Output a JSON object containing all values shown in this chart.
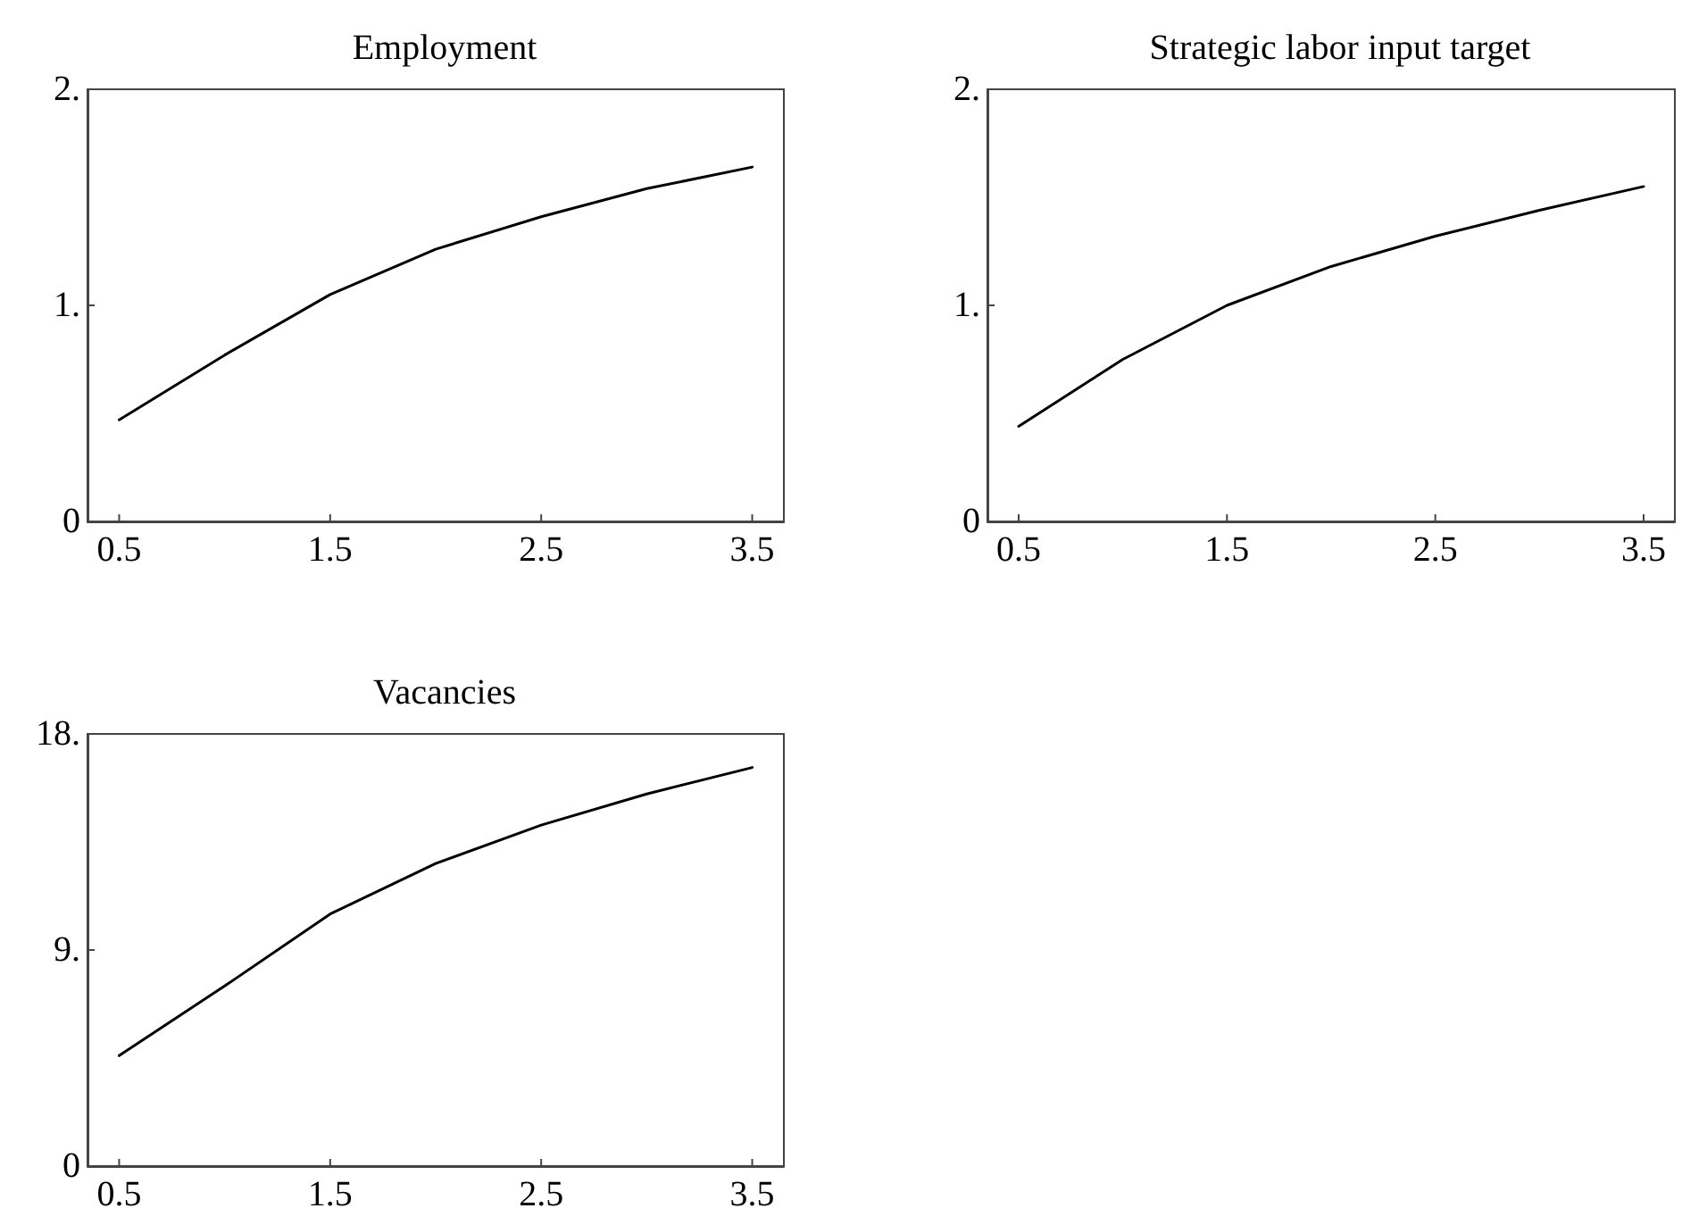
{
  "chart_data": [
    {
      "type": "line",
      "title": "Employment",
      "x": [
        0.5,
        1.0,
        1.5,
        2.0,
        2.5,
        3.0,
        3.5
      ],
      "series": [
        {
          "color": "#000000",
          "values": [
            0.47,
            0.77,
            1.05,
            1.26,
            1.41,
            1.54,
            1.64
          ]
        }
      ],
      "xlim": [
        0.35,
        3.65
      ],
      "xticks": [
        0.5,
        1.5,
        2.5,
        3.5
      ],
      "ylim": [
        0,
        2
      ],
      "yticks": [
        {
          "value": 0,
          "label": "0"
        },
        {
          "value": 1,
          "label": "1."
        },
        {
          "value": 2,
          "label": "2."
        }
      ],
      "grid": false,
      "marker": "none",
      "line_style": "solid"
    },
    {
      "type": "line",
      "title": "Strategic labor input target",
      "x": [
        0.5,
        1.0,
        1.5,
        2.0,
        2.5,
        3.0,
        3.5
      ],
      "series": [
        {
          "color": "#000000",
          "values": [
            0.44,
            0.75,
            1.0,
            1.18,
            1.32,
            1.44,
            1.55
          ]
        }
      ],
      "xlim": [
        0.35,
        3.65
      ],
      "xticks": [
        0.5,
        1.5,
        2.5,
        3.5
      ],
      "ylim": [
        0,
        2
      ],
      "yticks": [
        {
          "value": 0,
          "label": "0"
        },
        {
          "value": 1,
          "label": "1."
        },
        {
          "value": 2,
          "label": "2."
        }
      ],
      "grid": false,
      "marker": "none",
      "line_style": "solid"
    },
    {
      "type": "line",
      "title": "Vacancies",
      "x": [
        0.5,
        1.0,
        1.5,
        2.0,
        2.5,
        3.0,
        3.5
      ],
      "series": [
        {
          "color": "#000000",
          "values": [
            4.6,
            7.5,
            10.5,
            12.6,
            14.2,
            15.5,
            16.6
          ]
        }
      ],
      "xlim": [
        0.35,
        3.65
      ],
      "xticks": [
        0.5,
        1.5,
        2.5,
        3.5
      ],
      "ylim": [
        0,
        18
      ],
      "yticks": [
        {
          "value": 0,
          "label": "0"
        },
        {
          "value": 9,
          "label": "9."
        },
        {
          "value": 18,
          "label": "18."
        }
      ],
      "grid": false,
      "marker": "none",
      "line_style": "solid"
    }
  ]
}
